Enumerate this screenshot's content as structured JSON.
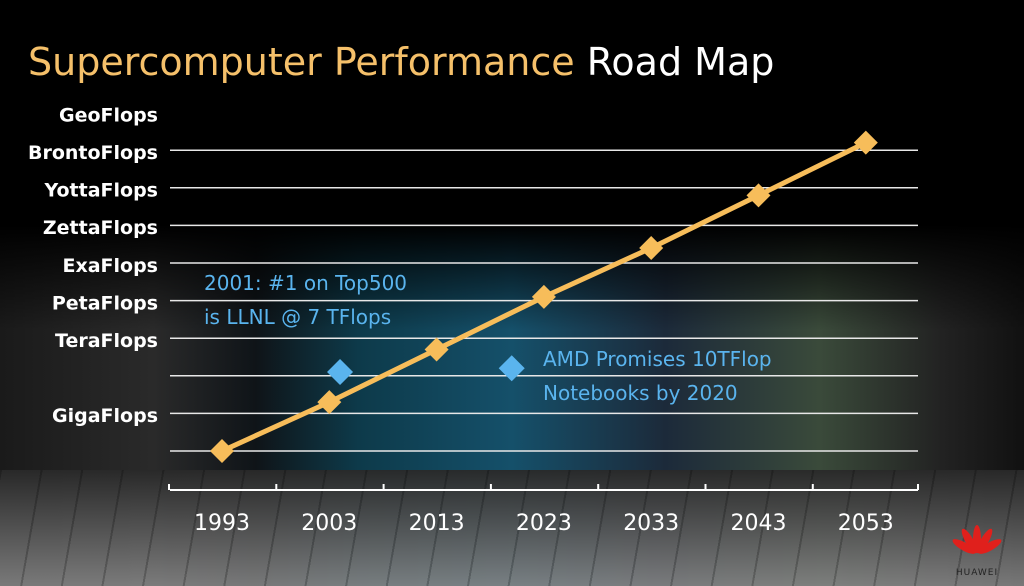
{
  "title": {
    "part1": "Supercomputer Performance",
    "part2": "Road Map"
  },
  "chart_data": {
    "type": "line",
    "title": "Supercomputer Performance Road Map",
    "x": [
      1993,
      2003,
      2013,
      2023,
      2033,
      2043,
      2053
    ],
    "xticks": [
      "1993",
      "2003",
      "2013",
      "2023",
      "2033",
      "2043",
      "2053"
    ],
    "xlim": [
      1993,
      2053
    ],
    "ylim": [
      0,
      8.5
    ],
    "grid": true,
    "yticks": [
      {
        "label": "GigaFlops",
        "level": 0.5
      },
      {
        "label": "TeraFlops",
        "level": 2.5
      },
      {
        "label": "PetaFlops",
        "level": 3.5
      },
      {
        "label": "ExaFlops",
        "level": 4.5
      },
      {
        "label": "ZettaFlops",
        "level": 5.5
      },
      {
        "label": "YottaFlops",
        "level": 6.5
      },
      {
        "label": "BrontoFlops",
        "level": 7.5
      },
      {
        "label": "GeoFlops",
        "level": 8.5
      }
    ],
    "series": [
      {
        "values": [
          0,
          1.3,
          2.7,
          4.1,
          5.4,
          6.8,
          8.2
        ],
        "color": "#f7bd5a",
        "marker": "diamond"
      }
    ],
    "highlights": [
      {
        "x": 2004,
        "y": 2.1,
        "color": "#5ab4ee",
        "marker": "diamond"
      },
      {
        "x": 2020,
        "y": 2.2,
        "color": "#5ab4ee",
        "marker": "diamond"
      }
    ],
    "annotations": [
      {
        "lines": [
          "2001: #1 on Top500",
          "is LLNL @ 7 TFlops"
        ],
        "color": "#5ab4ee"
      },
      {
        "lines": [
          "AMD Promises 10TFlop",
          "Notebooks by 2020"
        ],
        "color": "#5ab4ee"
      }
    ]
  },
  "logo": {
    "text": "HUAWEI"
  }
}
